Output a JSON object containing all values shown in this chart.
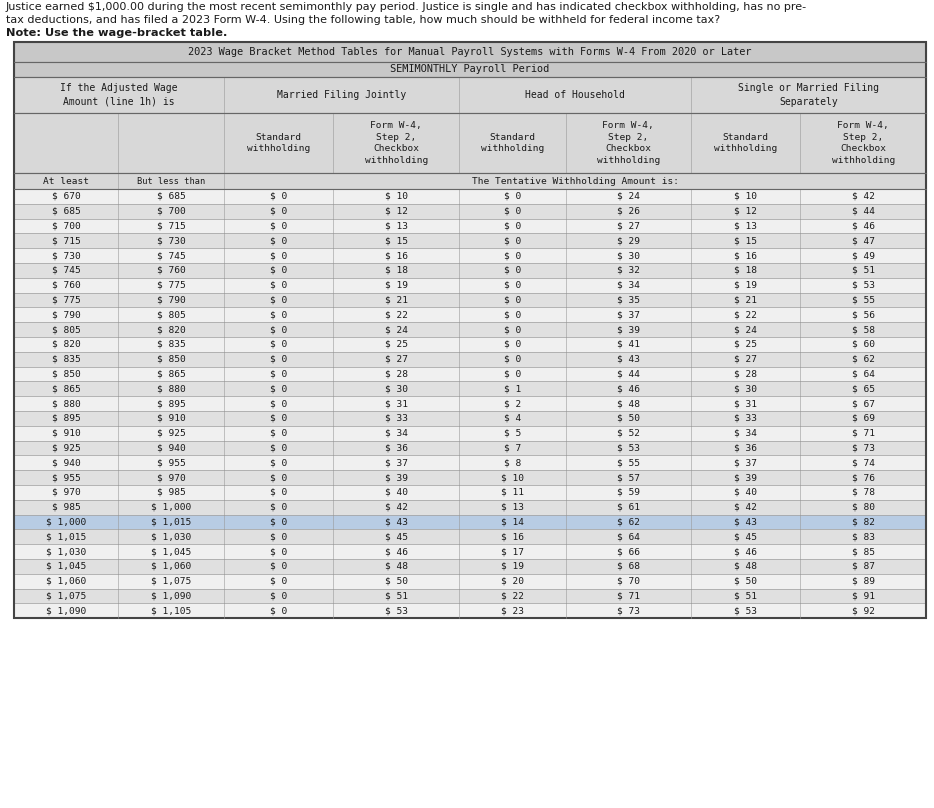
{
  "intro_line1": "Justice earned $1,000.00 during the most recent semimonthly pay period. Justice is single and has indicated checkbox withholding, has no pre-",
  "intro_line2": "tax deductions, and has filed a 2023 Form W-4. Using the following table, how much should be withheld for federal income tax?",
  "intro_line3": "Note: Use the wage-bracket table.",
  "title1": "2023 Wage Bracket Method Tables for Manual Payroll Systems with Forms W-4 From 2020 or Later",
  "title2": "SEMIMONTHLY Payroll Period",
  "tentative_note": "The Tentative Withholding Amount is:",
  "rows": [
    [
      670,
      685,
      0,
      10,
      0,
      24,
      10,
      42
    ],
    [
      685,
      700,
      0,
      12,
      0,
      26,
      12,
      44
    ],
    [
      700,
      715,
      0,
      13,
      0,
      27,
      13,
      46
    ],
    [
      715,
      730,
      0,
      15,
      0,
      29,
      15,
      47
    ],
    [
      730,
      745,
      0,
      16,
      0,
      30,
      16,
      49
    ],
    [
      745,
      760,
      0,
      18,
      0,
      32,
      18,
      51
    ],
    [
      760,
      775,
      0,
      19,
      0,
      34,
      19,
      53
    ],
    [
      775,
      790,
      0,
      21,
      0,
      35,
      21,
      55
    ],
    [
      790,
      805,
      0,
      22,
      0,
      37,
      22,
      56
    ],
    [
      805,
      820,
      0,
      24,
      0,
      39,
      24,
      58
    ],
    [
      820,
      835,
      0,
      25,
      0,
      41,
      25,
      60
    ],
    [
      835,
      850,
      0,
      27,
      0,
      43,
      27,
      62
    ],
    [
      850,
      865,
      0,
      28,
      0,
      44,
      28,
      64
    ],
    [
      865,
      880,
      0,
      30,
      1,
      46,
      30,
      65
    ],
    [
      880,
      895,
      0,
      31,
      2,
      48,
      31,
      67
    ],
    [
      895,
      910,
      0,
      33,
      4,
      50,
      33,
      69
    ],
    [
      910,
      925,
      0,
      34,
      5,
      52,
      34,
      71
    ],
    [
      925,
      940,
      0,
      36,
      7,
      53,
      36,
      73
    ],
    [
      940,
      955,
      0,
      37,
      8,
      55,
      37,
      74
    ],
    [
      955,
      970,
      0,
      39,
      10,
      57,
      39,
      76
    ],
    [
      970,
      985,
      0,
      40,
      11,
      59,
      40,
      78
    ],
    [
      985,
      1000,
      0,
      42,
      13,
      61,
      42,
      80
    ],
    [
      1000,
      1015,
      0,
      43,
      14,
      62,
      43,
      82
    ],
    [
      1015,
      1030,
      0,
      45,
      16,
      64,
      45,
      83
    ],
    [
      1030,
      1045,
      0,
      46,
      17,
      66,
      46,
      85
    ],
    [
      1045,
      1060,
      0,
      48,
      19,
      68,
      48,
      87
    ],
    [
      1060,
      1075,
      0,
      50,
      20,
      70,
      50,
      89
    ],
    [
      1075,
      1090,
      0,
      51,
      22,
      71,
      51,
      91
    ],
    [
      1090,
      1105,
      0,
      53,
      23,
      73,
      53,
      92
    ]
  ],
  "highlight_row_idx": 22,
  "bg_alt1": "#f0f0f0",
  "bg_alt2": "#e0e0e0",
  "header_bg": "#d8d8d8",
  "title_bg": "#c8c8c8",
  "text_color": "#1a1a1a",
  "border_color": "#999999",
  "highlight_color": "#b8cce4",
  "intro_fs": 8.0,
  "intro_bold_fs": 8.2,
  "table_fs": 7.0,
  "mono_font": "monospace"
}
